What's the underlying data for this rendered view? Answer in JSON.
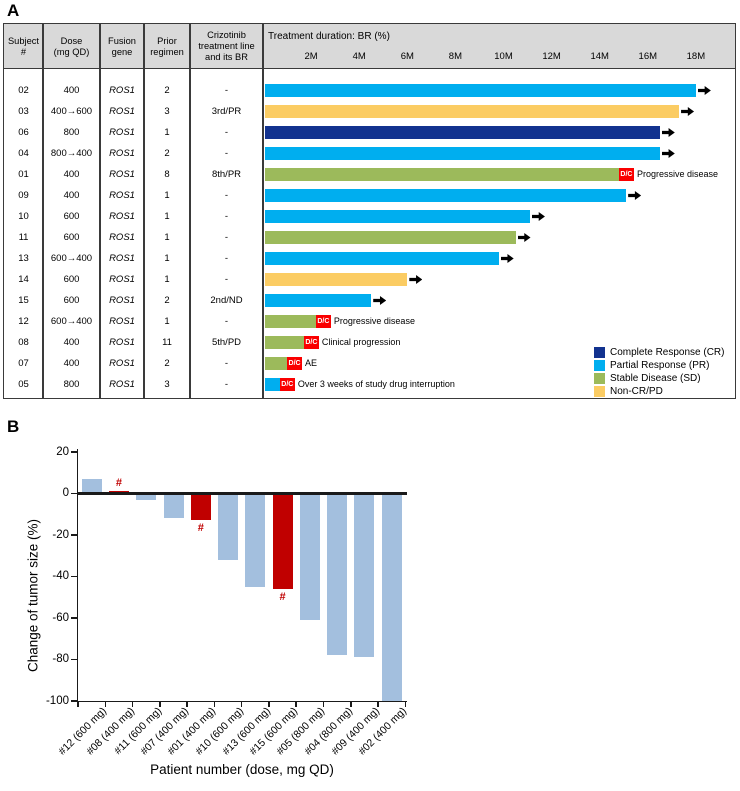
{
  "figure": {
    "panel_a_label": "A",
    "panel_b_label": "B"
  },
  "colors": {
    "complete_response": "#12328f",
    "partial_response": "#00aeef",
    "stable_disease": "#9cba5b",
    "non_cr_pd": "#fbcc63",
    "discontinued_red": "#fa0000",
    "waterfall_bar": "#a3bfde",
    "waterfall_highlight": "#c00000",
    "table_header_gray": "#d9d9d9"
  },
  "chart_data": [
    {
      "type": "bar",
      "subtype": "swimmer",
      "title": "Treatment duration: BR (%)",
      "x_unit": "months",
      "x_ticks": [
        "2M",
        "4M",
        "6M",
        "8M",
        "10M",
        "12M",
        "14M",
        "16M",
        "18M"
      ],
      "xlim_months": [
        0,
        19.7
      ],
      "table_headers": [
        [
          "Subject",
          "#"
        ],
        [
          "Dose",
          "(mg QD)"
        ],
        [
          "Fusion",
          "gene"
        ],
        [
          "Prior",
          "regimen"
        ],
        [
          "Crizotinib",
          "treatment line",
          "and its BR"
        ]
      ],
      "dc_label": "D/C",
      "rows": [
        {
          "subject": "02",
          "dose": "400",
          "fusion_gene": "ROS1",
          "prior_regimen": "2",
          "crizotinib_line_br": "-",
          "duration_months": 18.0,
          "response": "PR",
          "ongoing": true,
          "annotation": ""
        },
        {
          "subject": "03",
          "dose": "400→600",
          "fusion_gene": "ROS1",
          "prior_regimen": "3",
          "crizotinib_line_br": "3rd/PR",
          "duration_months": 17.3,
          "response": "Non-CR/PD",
          "ongoing": true,
          "annotation": ""
        },
        {
          "subject": "06",
          "dose": "800",
          "fusion_gene": "ROS1",
          "prior_regimen": "1",
          "crizotinib_line_br": "-",
          "duration_months": 16.5,
          "response": "CR",
          "ongoing": true,
          "annotation": ""
        },
        {
          "subject": "04",
          "dose": "800→400",
          "fusion_gene": "ROS1",
          "prior_regimen": "2",
          "crizotinib_line_br": "-",
          "duration_months": 16.5,
          "response": "PR",
          "ongoing": true,
          "annotation": ""
        },
        {
          "subject": "01",
          "dose": "400",
          "fusion_gene": "ROS1",
          "prior_regimen": "8",
          "crizotinib_line_br": "8th/PR",
          "duration_months": 14.8,
          "response": "SD",
          "ongoing": false,
          "annotation": "Progressive disease"
        },
        {
          "subject": "09",
          "dose": "400",
          "fusion_gene": "ROS1",
          "prior_regimen": "1",
          "crizotinib_line_br": "-",
          "duration_months": 15.1,
          "response": "PR",
          "ongoing": true,
          "annotation": ""
        },
        {
          "subject": "10",
          "dose": "600",
          "fusion_gene": "ROS1",
          "prior_regimen": "1",
          "crizotinib_line_br": "-",
          "duration_months": 11.1,
          "response": "PR",
          "ongoing": true,
          "annotation": ""
        },
        {
          "subject": "11",
          "dose": "600",
          "fusion_gene": "ROS1",
          "prior_regimen": "1",
          "crizotinib_line_br": "-",
          "duration_months": 10.5,
          "response": "SD",
          "ongoing": true,
          "annotation": ""
        },
        {
          "subject": "13",
          "dose": "600→400",
          "fusion_gene": "ROS1",
          "prior_regimen": "1",
          "crizotinib_line_br": "-",
          "duration_months": 9.8,
          "response": "PR",
          "ongoing": true,
          "annotation": ""
        },
        {
          "subject": "14",
          "dose": "600",
          "fusion_gene": "ROS1",
          "prior_regimen": "1",
          "crizotinib_line_br": "-",
          "duration_months": 6.0,
          "response": "Non-CR/PD",
          "ongoing": true,
          "annotation": ""
        },
        {
          "subject": "15",
          "dose": "600",
          "fusion_gene": "ROS1",
          "prior_regimen": "2",
          "crizotinib_line_br": "2nd/ND",
          "duration_months": 4.5,
          "response": "PR",
          "ongoing": true,
          "annotation": ""
        },
        {
          "subject": "12",
          "dose": "600→400",
          "fusion_gene": "ROS1",
          "prior_regimen": "1",
          "crizotinib_line_br": "-",
          "duration_months": 2.2,
          "response": "SD",
          "ongoing": false,
          "annotation": "Progressive disease"
        },
        {
          "subject": "08",
          "dose": "400",
          "fusion_gene": "ROS1",
          "prior_regimen": "11",
          "crizotinib_line_br": "5th/PD",
          "duration_months": 1.7,
          "response": "SD",
          "ongoing": false,
          "annotation": "Clinical progression"
        },
        {
          "subject": "07",
          "dose": "400",
          "fusion_gene": "ROS1",
          "prior_regimen": "2",
          "crizotinib_line_br": "-",
          "duration_months": 1.0,
          "response": "SD",
          "ongoing": false,
          "annotation": "AE"
        },
        {
          "subject": "05",
          "dose": "800",
          "fusion_gene": "ROS1",
          "prior_regimen": "3",
          "crizotinib_line_br": "-",
          "duration_months": 0.7,
          "response": "PR",
          "ongoing": false,
          "annotation": "Over 3 weeks of study drug interruption"
        }
      ],
      "legend_position": "bottom-right",
      "legend": [
        {
          "key": "CR",
          "label": "Complete Response (CR)",
          "color": "#12328f"
        },
        {
          "key": "PR",
          "label": "Partial Response (PR)",
          "color": "#00aeef"
        },
        {
          "key": "SD",
          "label": "Stable Disease (SD)",
          "color": "#9cba5b"
        },
        {
          "key": "Non-CR/PD",
          "label": "Non-CR/PD",
          "color": "#fbcc63"
        }
      ]
    },
    {
      "type": "bar",
      "subtype": "waterfall",
      "title": "",
      "xlabel": "Patient number (dose, mg QD)",
      "ylabel": "Change of tumor size (%)",
      "ylim": [
        -100,
        20
      ],
      "yticks": [
        20,
        0,
        -20,
        -40,
        -60,
        -80,
        -100
      ],
      "grid": false,
      "categories": [
        "#12 (600 mg)",
        "#08 (400 mg)",
        "#11 (600 mg)",
        "#07 (400 mg)",
        "#01 (400 mg)",
        "#10 (600 mg)",
        "#13 (600 mg)",
        "#15 (600 mg)",
        "#05 (800 mg)",
        "#04 (800 mg)",
        "#09 (400 mg)",
        "#02 (400 mg)"
      ],
      "values": [
        7,
        1,
        -3,
        -12,
        -13,
        -32,
        -45,
        -46,
        -61,
        -78,
        -79,
        -100
      ],
      "highlighted": [
        false,
        true,
        false,
        false,
        true,
        false,
        false,
        true,
        false,
        false,
        false,
        false
      ],
      "hash_symbol": "#",
      "bar_color": "#a3bfde",
      "highlight_color": "#c00000"
    }
  ]
}
